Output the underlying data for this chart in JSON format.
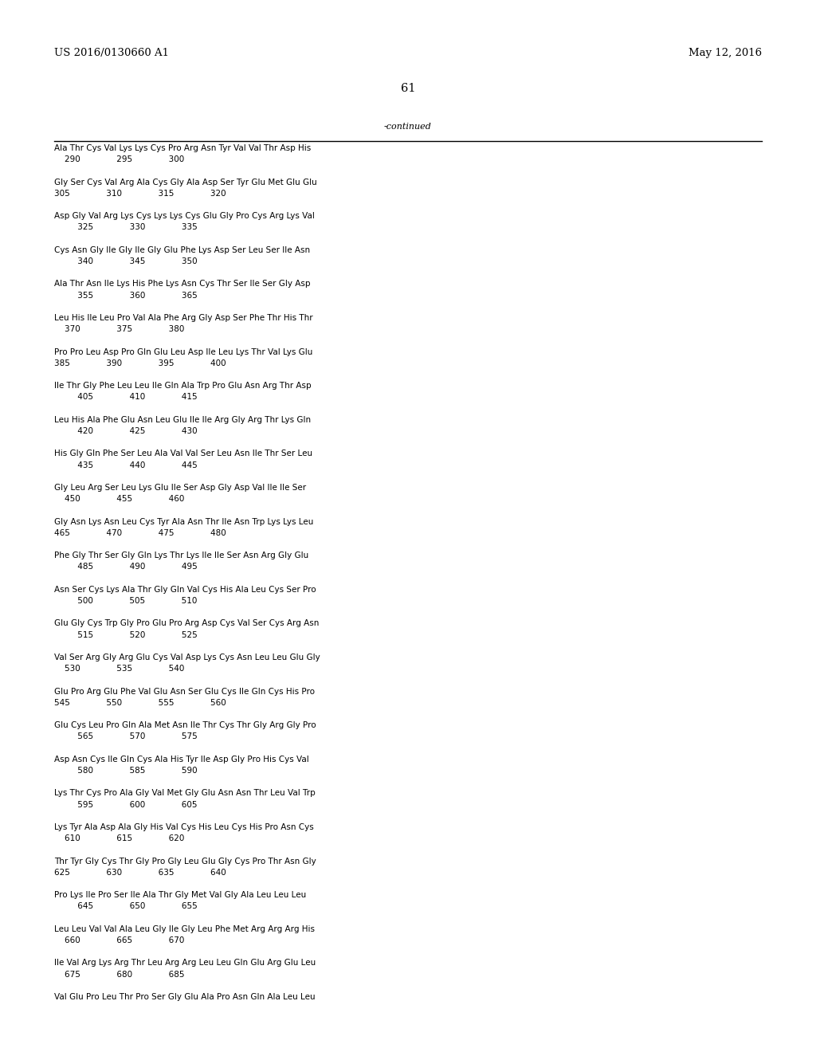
{
  "header_left": "US 2016/0130660 A1",
  "header_right": "May 12, 2016",
  "page_number": "61",
  "continued_label": "-continued",
  "background_color": "#ffffff",
  "text_color": "#000000",
  "font_size_header": 9.5,
  "font_size_page": 10.5,
  "font_size_body": 8.0,
  "font_size_seq": 7.5,
  "sequence_lines": [
    "Ala Thr Cys Val Lys Lys Cys Pro Arg Asn Tyr Val Val Thr Asp His",
    "    290              295              300",
    "",
    "Gly Ser Cys Val Arg Ala Cys Gly Ala Asp Ser Tyr Glu Met Glu Glu",
    "305              310              315              320",
    "",
    "Asp Gly Val Arg Lys Cys Lys Lys Cys Glu Gly Pro Cys Arg Lys Val",
    "         325              330              335",
    "",
    "Cys Asn Gly Ile Gly Ile Gly Glu Phe Lys Asp Ser Leu Ser Ile Asn",
    "         340              345              350",
    "",
    "Ala Thr Asn Ile Lys His Phe Lys Asn Cys Thr Ser Ile Ser Gly Asp",
    "         355              360              365",
    "",
    "Leu His Ile Leu Pro Val Ala Phe Arg Gly Asp Ser Phe Thr His Thr",
    "    370              375              380",
    "",
    "Pro Pro Leu Asp Pro Gln Glu Leu Asp Ile Leu Lys Thr Val Lys Glu",
    "385              390              395              400",
    "",
    "Ile Thr Gly Phe Leu Leu Ile Gln Ala Trp Pro Glu Asn Arg Thr Asp",
    "         405              410              415",
    "",
    "Leu His Ala Phe Glu Asn Leu Glu Ile Ile Arg Gly Arg Thr Lys Gln",
    "         420              425              430",
    "",
    "His Gly Gln Phe Ser Leu Ala Val Val Ser Leu Asn Ile Thr Ser Leu",
    "         435              440              445",
    "",
    "Gly Leu Arg Ser Leu Lys Glu Ile Ser Asp Gly Asp Val Ile Ile Ser",
    "    450              455              460",
    "",
    "Gly Asn Lys Asn Leu Cys Tyr Ala Asn Thr Ile Asn Trp Lys Lys Leu",
    "465              470              475              480",
    "",
    "Phe Gly Thr Ser Gly Gln Lys Thr Lys Ile Ile Ser Asn Arg Gly Glu",
    "         485              490              495",
    "",
    "Asn Ser Cys Lys Ala Thr Gly Gln Val Cys His Ala Leu Cys Ser Pro",
    "         500              505              510",
    "",
    "Glu Gly Cys Trp Gly Pro Glu Pro Arg Asp Cys Val Ser Cys Arg Asn",
    "         515              520              525",
    "",
    "Val Ser Arg Gly Arg Glu Cys Val Asp Lys Cys Asn Leu Leu Glu Gly",
    "    530              535              540",
    "",
    "Glu Pro Arg Glu Phe Val Glu Asn Ser Glu Cys Ile Gln Cys His Pro",
    "545              550              555              560",
    "",
    "Glu Cys Leu Pro Gln Ala Met Asn Ile Thr Cys Thr Gly Arg Gly Pro",
    "         565              570              575",
    "",
    "Asp Asn Cys Ile Gln Cys Ala His Tyr Ile Asp Gly Pro His Cys Val",
    "         580              585              590",
    "",
    "Lys Thr Cys Pro Ala Gly Val Met Gly Glu Asn Asn Thr Leu Val Trp",
    "         595              600              605",
    "",
    "Lys Tyr Ala Asp Ala Gly His Val Cys His Leu Cys His Pro Asn Cys",
    "    610              615              620",
    "",
    "Thr Tyr Gly Cys Thr Gly Pro Gly Leu Glu Gly Cys Pro Thr Asn Gly",
    "625              630              635              640",
    "",
    "Pro Lys Ile Pro Ser Ile Ala Thr Gly Met Val Gly Ala Leu Leu Leu",
    "         645              650              655",
    "",
    "Leu Leu Val Val Ala Leu Gly Ile Gly Leu Phe Met Arg Arg Arg His",
    "    660              665              670",
    "",
    "Ile Val Arg Lys Arg Thr Leu Arg Arg Leu Leu Gln Glu Arg Glu Leu",
    "    675              680              685",
    "",
    "Val Glu Pro Leu Thr Pro Ser Gly Glu Ala Pro Asn Gln Ala Leu Leu"
  ]
}
